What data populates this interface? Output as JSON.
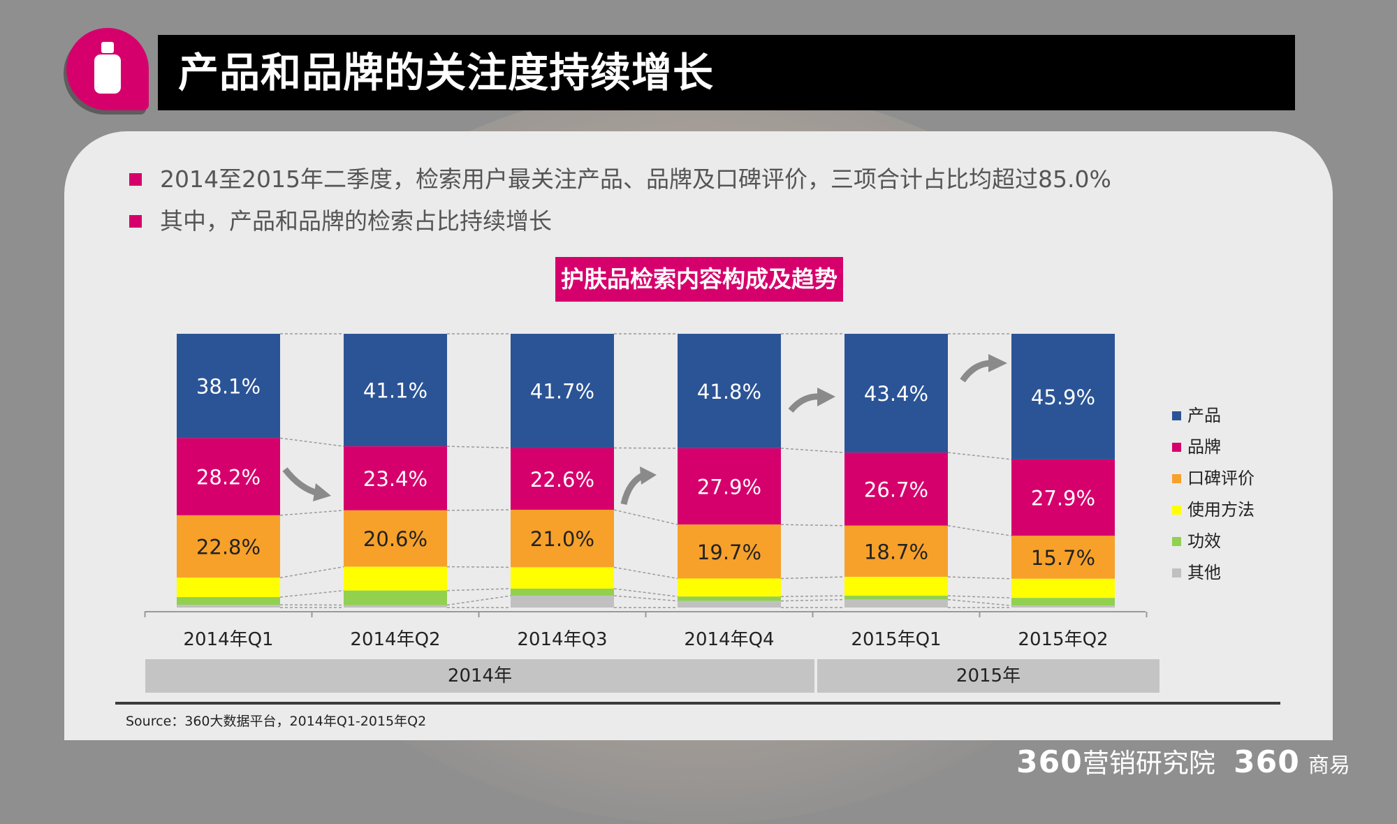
{
  "header": {
    "title": "产品和品牌的关注度持续增长"
  },
  "bullets": [
    "2014至2015年二季度，检索用户最关注产品、品牌及口碑评价，三项合计占比均超过85.0%",
    "其中，产品和品牌的检索占比持续增长"
  ],
  "colors": {
    "product": "#2b5496",
    "brand": "#d6006c",
    "reputation": "#f7a12a",
    "usage": "#ffff00",
    "effect": "#92d050",
    "other": "#c0c0c0",
    "accent": "#d6006c"
  },
  "chart_data": {
    "type": "bar",
    "stacked": true,
    "title": "护肤品检索内容构成及趋势",
    "categories": [
      "2014年Q1",
      "2014年Q2",
      "2014年Q3",
      "2014年Q4",
      "2015年Q1",
      "2015年Q2"
    ],
    "groups": [
      {
        "label": "2014年",
        "categories": [
          "2014年Q1",
          "2014年Q2",
          "2014年Q3",
          "2014年Q4"
        ]
      },
      {
        "label": "2015年",
        "categories": [
          "2015年Q1",
          "2015年Q2"
        ]
      }
    ],
    "series": [
      {
        "name": "产品",
        "values": [
          38.1,
          41.1,
          41.7,
          41.8,
          43.4,
          45.9
        ],
        "labels": [
          "38.1%",
          "41.1%",
          "41.7%",
          "41.8%",
          "43.4%",
          "45.9%"
        ]
      },
      {
        "name": "品牌",
        "values": [
          28.2,
          23.4,
          22.6,
          27.9,
          26.7,
          27.9
        ],
        "labels": [
          "28.2%",
          "23.4%",
          "22.6%",
          "27.9%",
          "26.7%",
          "27.9%"
        ]
      },
      {
        "name": "口碑评价",
        "values": [
          22.8,
          20.6,
          21.0,
          19.7,
          18.7,
          15.7
        ],
        "labels": [
          "22.8%",
          "20.6%",
          "21.0%",
          "19.7%",
          "18.7%",
          "15.7%"
        ]
      },
      {
        "name": "使用方法",
        "values": [
          7.1,
          8.7,
          7.8,
          6.6,
          6.9,
          7.0
        ]
      },
      {
        "name": "功效",
        "values": [
          2.8,
          5.3,
          2.6,
          1.6,
          1.4,
          2.8
        ]
      },
      {
        "name": "其他",
        "values": [
          1.0,
          0.9,
          4.3,
          2.4,
          2.9,
          0.7
        ]
      }
    ],
    "ylim": [
      0,
      100
    ],
    "legend_position": "right",
    "grid": false
  },
  "source": "Source：360大数据平台，2014年Q1-2015年Q2",
  "footer": {
    "brand_number": "360",
    "brand_name": "营销研究院",
    "partner_number": "360",
    "partner_name": "商易"
  }
}
